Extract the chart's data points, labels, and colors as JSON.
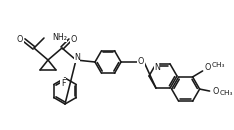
{
  "bg_color": "#ffffff",
  "line_color": "#1a1a1a",
  "lw": 1.15,
  "fs": 5.8,
  "figsize": [
    2.34,
    1.3
  ],
  "dpi": 100,
  "xlim": [
    0,
    234
  ],
  "ylim": [
    130,
    0
  ]
}
